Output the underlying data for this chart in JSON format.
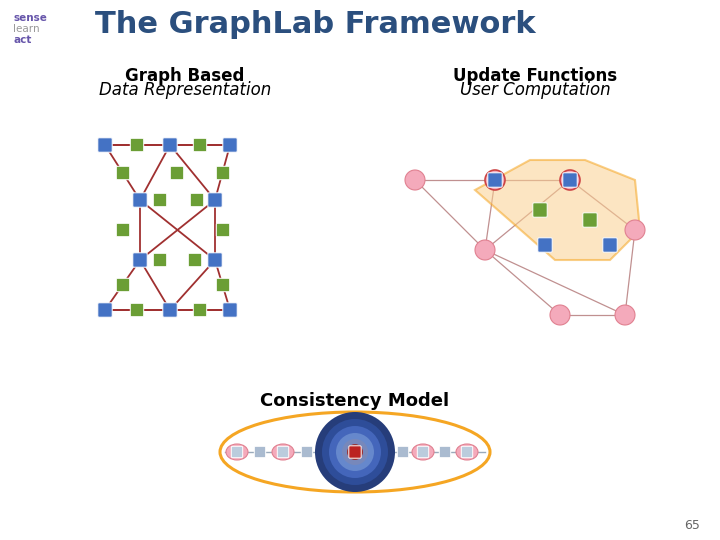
{
  "title": "The GraphLab Framework",
  "title_color": "#2B4F7E",
  "title_fontsize": 22,
  "bg_color": "#FFFFFF",
  "label1_line1": "Graph Based",
  "label1_line2": "Data Representation",
  "label2_line1": "Update Functions",
  "label2_line2": "User Computation",
  "label3": "Consistency Model",
  "page_num": "65",
  "node_blue": "#4472C4",
  "node_green": "#6B9E35",
  "node_pink_fill": "#F4AABB",
  "node_pink_edge": "#E08090",
  "edge_red": "#A03030",
  "edge_pink": "#C09090",
  "highlight_orange": "#F5A623",
  "highlight_fill": "#FAD090",
  "highlight_alpha": 0.55,
  "logo_sense": "#6655AA",
  "logo_learn": "#999999",
  "logo_act": "#6655AA"
}
